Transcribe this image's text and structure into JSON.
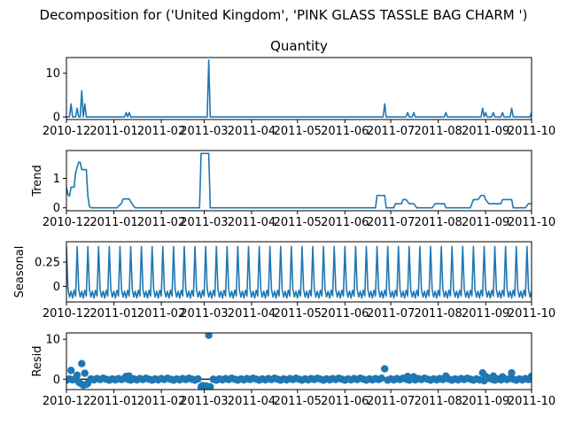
{
  "chart_data": {
    "type": "line",
    "title": "Decomposition for ('United Kingdom', 'PINK GLASS TASSLE BAG CHARM ')",
    "x_tick_labels": [
      "2010-12",
      "2011-01",
      "2011-02",
      "2011-03",
      "2011-04",
      "2011-05",
      "2011-06",
      "2011-07",
      "2011-08",
      "2011-09",
      "2011-10"
    ],
    "x_range": [
      "2010-12-01",
      "2011-10-01"
    ],
    "colors": {
      "line": "#1f77b4",
      "zero_line": "#000000"
    },
    "panels": [
      {
        "name": "observed",
        "title": "Quantity",
        "ylabel": "",
        "style": "line",
        "ylim": [
          -0.6,
          13.6
        ],
        "yticks": [
          0,
          10
        ],
        "points": [
          [
            "2010-12-01",
            0
          ],
          [
            "2010-12-02",
            0
          ],
          [
            "2010-12-03",
            0
          ],
          [
            "2010-12-04",
            3
          ],
          [
            "2010-12-05",
            0
          ],
          [
            "2010-12-06",
            0
          ],
          [
            "2010-12-07",
            0
          ],
          [
            "2010-12-08",
            2
          ],
          [
            "2010-12-09",
            0
          ],
          [
            "2010-12-10",
            0
          ],
          [
            "2010-12-11",
            6
          ],
          [
            "2010-12-12",
            0
          ],
          [
            "2010-12-13",
            3
          ],
          [
            "2010-12-14",
            0
          ],
          [
            "2010-12-15",
            0
          ],
          [
            "2011-01-08",
            0
          ],
          [
            "2011-01-09",
            1
          ],
          [
            "2011-01-10",
            0
          ],
          [
            "2011-01-11",
            1
          ],
          [
            "2011-01-12",
            0
          ],
          [
            "2011-03-03",
            0
          ],
          [
            "2011-03-04",
            13
          ],
          [
            "2011-03-05",
            0
          ],
          [
            "2011-06-26",
            0
          ],
          [
            "2011-06-27",
            3
          ],
          [
            "2011-06-28",
            0
          ],
          [
            "2011-07-11",
            0
          ],
          [
            "2011-07-12",
            1
          ],
          [
            "2011-07-13",
            0
          ],
          [
            "2011-07-15",
            0
          ],
          [
            "2011-07-16",
            1
          ],
          [
            "2011-07-17",
            0
          ],
          [
            "2011-08-05",
            0
          ],
          [
            "2011-08-06",
            1
          ],
          [
            "2011-08-07",
            0
          ],
          [
            "2011-08-29",
            0
          ],
          [
            "2011-08-30",
            2
          ],
          [
            "2011-08-31",
            0
          ],
          [
            "2011-09-01",
            1
          ],
          [
            "2011-09-02",
            0
          ],
          [
            "2011-09-05",
            0
          ],
          [
            "2011-09-06",
            1
          ],
          [
            "2011-09-07",
            0
          ],
          [
            "2011-09-11",
            0
          ],
          [
            "2011-09-12",
            1
          ],
          [
            "2011-09-13",
            0
          ],
          [
            "2011-09-17",
            0
          ],
          [
            "2011-09-18",
            2
          ],
          [
            "2011-09-19",
            0
          ],
          [
            "2011-09-30",
            0
          ],
          [
            "2011-10-01",
            1
          ]
        ]
      },
      {
        "name": "trend",
        "title": "",
        "ylabel": "Trend",
        "style": "line",
        "ylim": [
          -0.1,
          1.95
        ],
        "yticks": [
          0,
          1
        ],
        "points": [
          [
            "2010-12-01",
            0.7
          ],
          [
            "2010-12-02",
            0.45
          ],
          [
            "2010-12-03",
            0.4
          ],
          [
            "2010-12-04",
            0.7
          ],
          [
            "2010-12-06",
            0.7
          ],
          [
            "2010-12-07",
            1.2
          ],
          [
            "2010-12-09",
            1.55
          ],
          [
            "2010-12-10",
            1.55
          ],
          [
            "2010-12-11",
            1.3
          ],
          [
            "2010-12-14",
            1.3
          ],
          [
            "2010-12-15",
            0.4
          ],
          [
            "2010-12-16",
            0.05
          ],
          [
            "2010-12-17",
            0
          ],
          [
            "2011-01-03",
            0
          ],
          [
            "2011-01-06",
            0.15
          ],
          [
            "2011-01-07",
            0.3
          ],
          [
            "2011-01-11",
            0.3
          ],
          [
            "2011-01-14",
            0.05
          ],
          [
            "2011-01-15",
            0
          ],
          [
            "2011-02-26",
            0
          ],
          [
            "2011-02-27",
            1.85
          ],
          [
            "2011-03-04",
            1.85
          ],
          [
            "2011-03-05",
            0
          ],
          [
            "2011-06-21",
            0
          ],
          [
            "2011-06-22",
            0.42
          ],
          [
            "2011-06-26",
            0.42
          ],
          [
            "2011-06-27",
            0.42
          ],
          [
            "2011-06-28",
            0
          ],
          [
            "2011-07-03",
            0
          ],
          [
            "2011-07-04",
            0.14
          ],
          [
            "2011-07-08",
            0.14
          ],
          [
            "2011-07-09",
            0.28
          ],
          [
            "2011-07-11",
            0.28
          ],
          [
            "2011-07-13",
            0.14
          ],
          [
            "2011-07-16",
            0.14
          ],
          [
            "2011-07-18",
            0
          ],
          [
            "2011-07-28",
            0
          ],
          [
            "2011-07-30",
            0.14
          ],
          [
            "2011-08-05",
            0.14
          ],
          [
            "2011-08-06",
            0
          ],
          [
            "2011-08-22",
            0
          ],
          [
            "2011-08-24",
            0.28
          ],
          [
            "2011-08-27",
            0.28
          ],
          [
            "2011-08-29",
            0.42
          ],
          [
            "2011-08-31",
            0.42
          ],
          [
            "2011-09-01",
            0.28
          ],
          [
            "2011-09-03",
            0.14
          ],
          [
            "2011-09-11",
            0.14
          ],
          [
            "2011-09-12",
            0.28
          ],
          [
            "2011-09-18",
            0.28
          ],
          [
            "2011-09-19",
            0
          ],
          [
            "2011-09-27",
            0
          ],
          [
            "2011-09-29",
            0.14
          ],
          [
            "2011-10-01",
            0.14
          ]
        ]
      },
      {
        "name": "seasonal",
        "title": "",
        "ylabel": "Seasonal",
        "style": "line",
        "ylim": [
          -0.16,
          0.46
        ],
        "yticks": [
          0,
          0.25
        ],
        "period_days": 7,
        "weekly_pattern": [
          0.41,
          -0.03,
          -0.11,
          -0.05,
          -0.12,
          -0.04,
          -0.1
        ]
      },
      {
        "name": "resid",
        "title": "",
        "ylabel": "Resid",
        "style": "scatter",
        "ylim": [
          -2.6,
          11.6
        ],
        "yticks": [
          0,
          10
        ],
        "points": [
          [
            "2010-12-04",
            2.2
          ],
          [
            "2010-12-08",
            1.0
          ],
          [
            "2010-12-09",
            -0.7
          ],
          [
            "2010-12-10",
            -1.0
          ],
          [
            "2010-12-11",
            3.9
          ],
          [
            "2010-12-12",
            -1.5
          ],
          [
            "2010-12-13",
            1.5
          ],
          [
            "2010-12-14",
            -1.3
          ],
          [
            "2010-12-15",
            -1.0
          ],
          [
            "2011-01-09",
            0.7
          ],
          [
            "2011-01-11",
            0.8
          ],
          [
            "2011-02-27",
            -1.9
          ],
          [
            "2011-02-28",
            -1.6
          ],
          [
            "2011-03-01",
            -1.9
          ],
          [
            "2011-03-02",
            -1.7
          ],
          [
            "2011-03-03",
            -1.8
          ],
          [
            "2011-03-04",
            11.0
          ],
          [
            "2011-03-05",
            -1.9
          ],
          [
            "2011-06-27",
            2.6
          ],
          [
            "2011-07-12",
            0.7
          ],
          [
            "2011-07-16",
            0.6
          ],
          [
            "2011-08-06",
            0.8
          ],
          [
            "2011-08-30",
            1.6
          ],
          [
            "2011-08-31",
            -0.4
          ],
          [
            "2011-09-01",
            0.7
          ],
          [
            "2011-09-06",
            0.8
          ],
          [
            "2011-09-12",
            0.6
          ],
          [
            "2011-09-18",
            1.6
          ],
          [
            "2011-10-01",
            0.7
          ]
        ]
      }
    ]
  }
}
